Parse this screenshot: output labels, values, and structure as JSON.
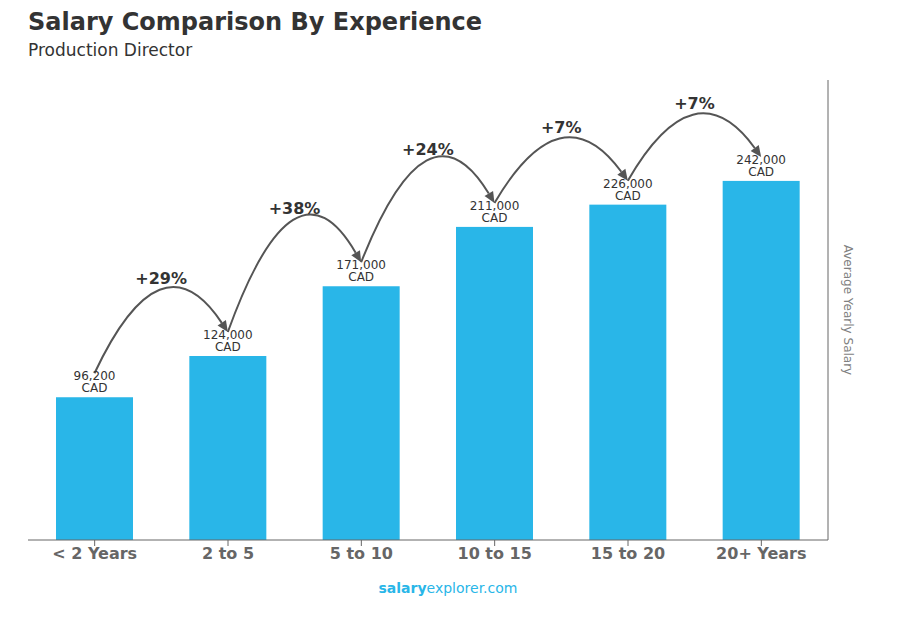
{
  "chart_data": {
    "type": "bar",
    "title": "Salary Comparison By Experience",
    "subtitle": "Production Director",
    "ylabel": "Average Yearly Salary",
    "categories": [
      "< 2 Years",
      "2 to 5",
      "5 to 10",
      "10 to 15",
      "15 to 20",
      "20+ Years"
    ],
    "values": [
      96200,
      124000,
      171000,
      211000,
      226000,
      242000
    ],
    "value_labels": [
      "96,200 CAD",
      "124,000 CAD",
      "171,000 CAD",
      "211,000 CAD",
      "226,000 CAD",
      "242,000 CAD"
    ],
    "data_labels": true,
    "change_labels": [
      "+29%",
      "+38%",
      "+24%",
      "+7%",
      "+7%"
    ],
    "annotations": [
      "salary",
      "explorer.com"
    ],
    "color": "#29b6e8",
    "ylim": [
      0,
      310000
    ],
    "tick_labels": "x",
    "grid": false
  }
}
